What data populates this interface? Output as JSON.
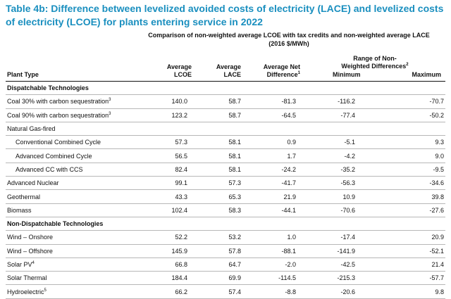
{
  "title": "Table 4b:  Difference between levelized avoided costs of electricity (LACE) and levelized costs of electricity (LCOE) for plants entering service in 2022",
  "header": {
    "super_line1": "Comparison of non-weighted average LCOE with tax credits and non-weighted average LACE",
    "super_line2": "(2016 $/MWh)",
    "plant_type": "Plant Type",
    "avg_lcoe_1": "Average",
    "avg_lcoe_2": "LCOE",
    "avg_lace_1": "Average",
    "avg_lace_2": "LACE",
    "avg_net_1": "Average Net",
    "avg_net_2": "Difference",
    "avg_net_sup": "1",
    "range_1": "Range of Non-",
    "range_2": "Weighted Differences",
    "range_sup": "2",
    "minimum": "Minimum",
    "maximum": "Maximum"
  },
  "rows": [
    {
      "name": "Dispatchable Technologies",
      "sup": "",
      "kind": "section",
      "lcoe": "",
      "lace": "",
      "net": "",
      "min": "",
      "max": ""
    },
    {
      "name": "Coal 30% with carbon sequestration",
      "sup": "3",
      "kind": "normal",
      "lcoe": "140.0",
      "lace": "58.7",
      "net": "-81.3",
      "min": "-116.2",
      "max": "-70.7"
    },
    {
      "name": "Coal 90% with carbon sequestration",
      "sup": "3",
      "kind": "normal",
      "lcoe": "123.2",
      "lace": "58.7",
      "net": "-64.5",
      "min": "-77.4",
      "max": "-50.2"
    },
    {
      "name": "Natural Gas-fired",
      "sup": "",
      "kind": "normal",
      "lcoe": "",
      "lace": "",
      "net": "",
      "min": "",
      "max": ""
    },
    {
      "name": "Conventional Combined Cycle",
      "sup": "",
      "kind": "indent",
      "lcoe": "57.3",
      "lace": "58.1",
      "net": "0.9",
      "min": "-5.1",
      "max": "9.3"
    },
    {
      "name": "Advanced Combined Cycle",
      "sup": "",
      "kind": "indent",
      "lcoe": "56.5",
      "lace": "58.1",
      "net": "1.7",
      "min": "-4.2",
      "max": "9.0"
    },
    {
      "name": "Advanced CC with CCS",
      "sup": "",
      "kind": "indent",
      "lcoe": "82.4",
      "lace": "58.1",
      "net": "-24.2",
      "min": "-35.2",
      "max": "-9.5"
    },
    {
      "name": "Advanced Nuclear",
      "sup": "",
      "kind": "normal",
      "lcoe": "99.1",
      "lace": "57.3",
      "net": "-41.7",
      "min": "-56.3",
      "max": "-34.6"
    },
    {
      "name": "Geothermal",
      "sup": "",
      "kind": "normal",
      "lcoe": "43.3",
      "lace": "65.3",
      "net": "21.9",
      "min": "10.9",
      "max": "39.8"
    },
    {
      "name": "Biomass",
      "sup": "",
      "kind": "normal",
      "lcoe": "102.4",
      "lace": "58.3",
      "net": "-44.1",
      "min": "-70.6",
      "max": "-27.6"
    },
    {
      "name": "Non-Dispatchable Technologies",
      "sup": "",
      "kind": "section",
      "lcoe": "",
      "lace": "",
      "net": "",
      "min": "",
      "max": ""
    },
    {
      "name": "Wind – Onshore",
      "sup": "",
      "kind": "normal",
      "lcoe": "52.2",
      "lace": "53.2",
      "net": "1.0",
      "min": "-17.4",
      "max": "20.9"
    },
    {
      "name": "Wind – Offshore",
      "sup": "",
      "kind": "normal",
      "lcoe": "145.9",
      "lace": "57.8",
      "net": "-88.1",
      "min": "-141.9",
      "max": "-52.1"
    },
    {
      "name": "Solar PV",
      "sup": "4",
      "kind": "normal",
      "lcoe": "66.8",
      "lace": "64.7",
      "net": "-2.0",
      "min": "-42.5",
      "max": "21.4"
    },
    {
      "name": "Solar Thermal",
      "sup": "",
      "kind": "normal",
      "lcoe": "184.4",
      "lace": "69.9",
      "net": "-114.5",
      "min": "-215.3",
      "max": "-57.7"
    },
    {
      "name": "Hydroelectric",
      "sup": "5",
      "kind": "normal",
      "lcoe": "66.2",
      "lace": "57.4",
      "net": "-8.8",
      "min": "-20.6",
      "max": "9.8"
    }
  ]
}
